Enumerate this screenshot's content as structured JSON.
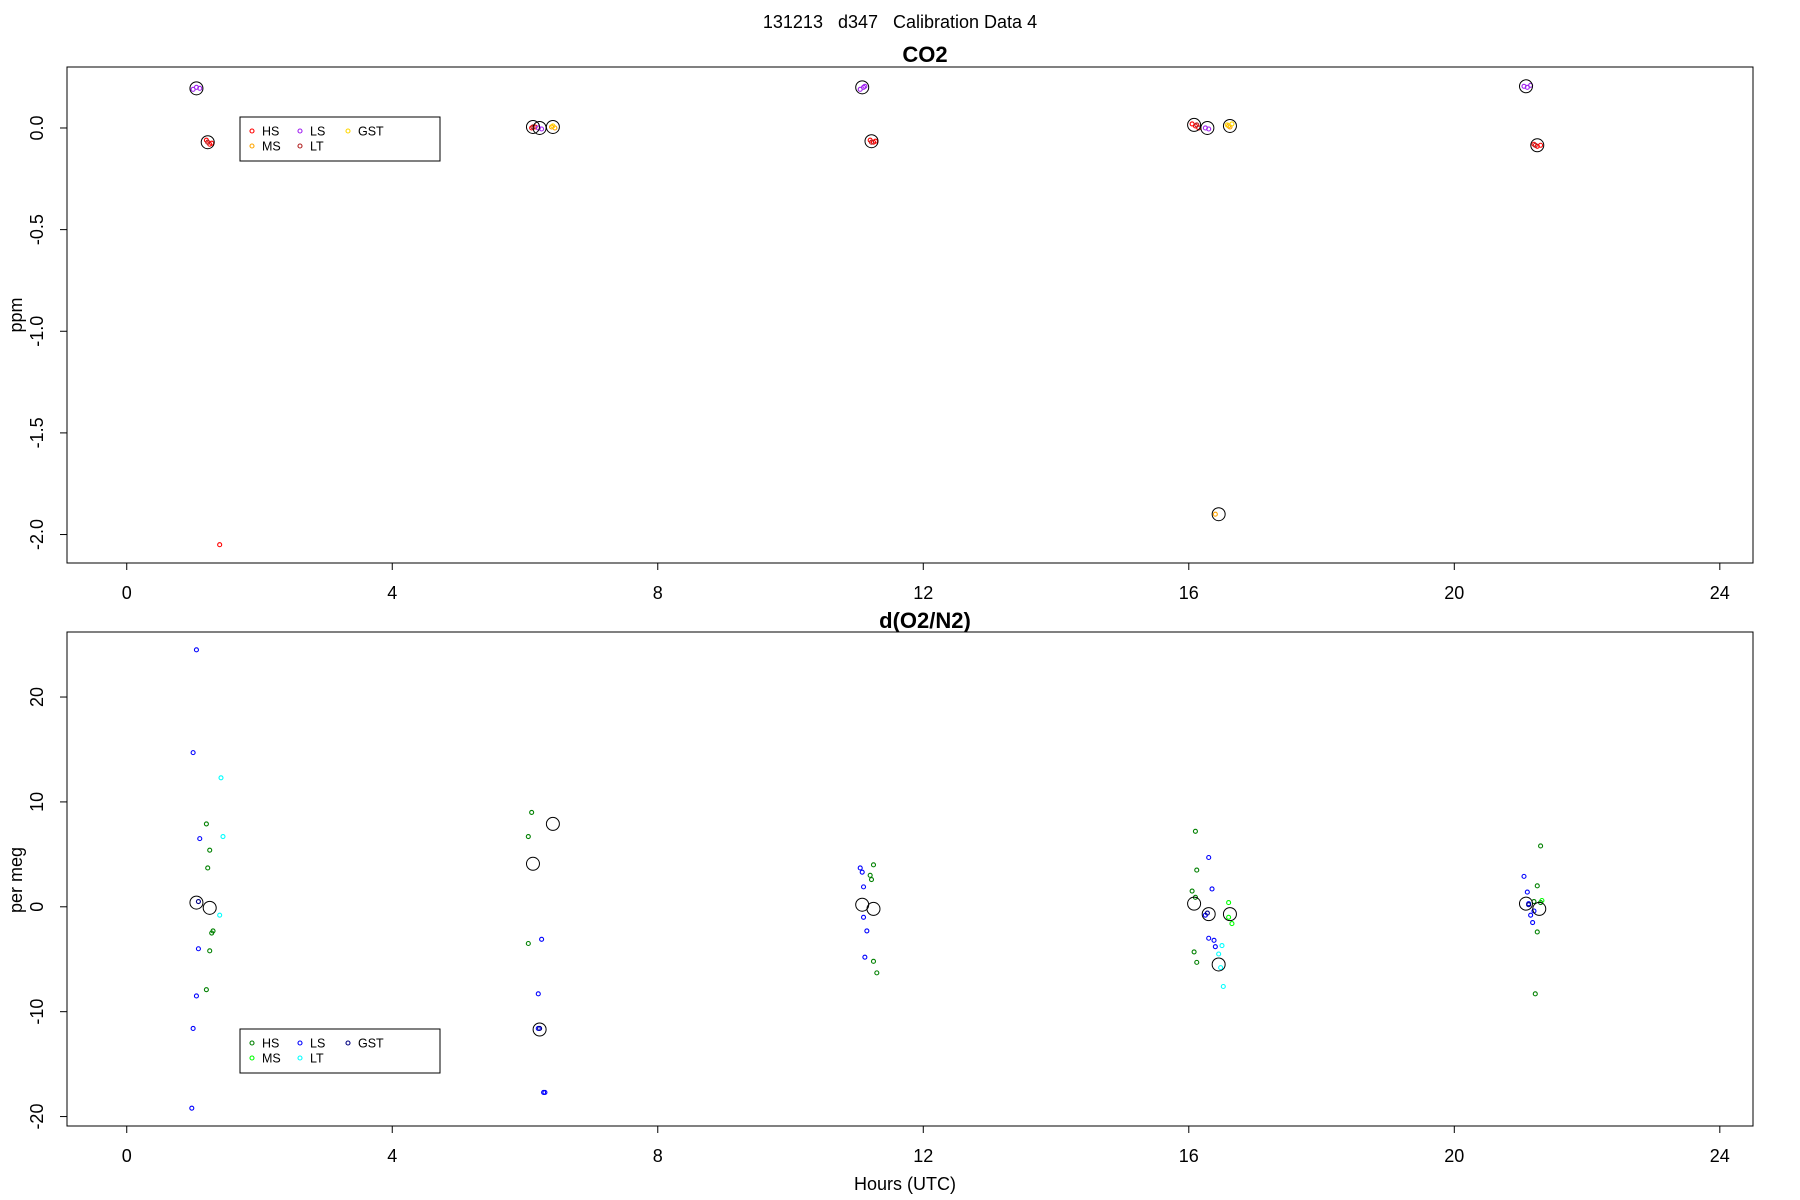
{
  "figure": {
    "title": "131213   d347   Calibration Data 4"
  },
  "chart_data": [
    {
      "type": "scatter",
      "title": "CO2",
      "xlabel": "",
      "ylabel": "ppm",
      "xlim": [
        -0.9,
        24.5
      ],
      "ylim": [
        -2.14,
        0.3
      ],
      "xticks": [
        0,
        4,
        8,
        12,
        16,
        20,
        24
      ],
      "xtick_labels": [
        "0",
        "4",
        "8",
        "12",
        "16",
        "20",
        "24"
      ],
      "yticks": [
        0.0,
        -0.5,
        -1.0,
        -1.5,
        -2.0
      ],
      "ytick_labels": [
        "0.0",
        "-0.5",
        "-1.0",
        "-1.5",
        "-2.0"
      ],
      "grid": false,
      "legend": {
        "placement": "top-left",
        "entries": [
          {
            "label": "HS",
            "color": "#ff0000"
          },
          {
            "label": "MS",
            "color": "#ffa500"
          },
          {
            "label": "LS",
            "color": "#a020f0"
          },
          {
            "label": "LT",
            "color": "#b22222"
          },
          {
            "label": "GST",
            "color": "#ffd700"
          }
        ]
      },
      "series": [
        {
          "name": "HS",
          "color": "#ff0000",
          "points": [
            [
              1.2,
              -0.06
            ],
            [
              1.25,
              -0.08
            ],
            [
              1.28,
              -0.075
            ],
            [
              1.4,
              -2.05
            ],
            [
              6.1,
              0.0
            ],
            [
              6.15,
              0.005
            ],
            [
              11.2,
              -0.06
            ],
            [
              11.25,
              -0.07
            ],
            [
              11.28,
              -0.065
            ],
            [
              16.05,
              0.02
            ],
            [
              16.1,
              0.01
            ],
            [
              16.15,
              0.0
            ],
            [
              21.2,
              -0.08
            ],
            [
              21.25,
              -0.09
            ],
            [
              21.3,
              -0.085
            ]
          ]
        },
        {
          "name": "MS",
          "color": "#ffa500",
          "points": [
            [
              6.4,
              0.005
            ],
            [
              6.45,
              0.0
            ],
            [
              16.4,
              -1.9
            ],
            [
              16.6,
              0.01
            ],
            [
              16.62,
              0.005
            ]
          ]
        },
        {
          "name": "LS",
          "color": "#a020f0",
          "points": [
            [
              1.0,
              0.19
            ],
            [
              1.05,
              0.2
            ],
            [
              1.1,
              0.195
            ],
            [
              6.2,
              0.0
            ],
            [
              6.25,
              -0.005
            ],
            [
              11.05,
              0.19
            ],
            [
              11.1,
              0.2
            ],
            [
              11.12,
              0.205
            ],
            [
              16.25,
              0.0
            ],
            [
              16.3,
              -0.005
            ],
            [
              21.05,
              0.205
            ],
            [
              21.1,
              0.2
            ],
            [
              21.15,
              0.21
            ]
          ]
        },
        {
          "name": "LT",
          "color": "#b22222",
          "points": [
            [
              1.22,
              -0.07
            ],
            [
              6.12,
              0.005
            ],
            [
              11.22,
              -0.07
            ],
            [
              16.12,
              0.015
            ],
            [
              21.22,
              -0.085
            ]
          ]
        },
        {
          "name": "GST",
          "color": "#ffd700",
          "points": [
            [
              6.42,
              0.01
            ],
            [
              16.58,
              0.015
            ],
            [
              16.65,
              0.02
            ]
          ]
        },
        {
          "name": "",
          "color": "#000000",
          "marker": "large-circle",
          "points": [
            [
              1.05,
              0.195
            ],
            [
              1.22,
              -0.07
            ],
            [
              6.12,
              0.005
            ],
            [
              6.22,
              0.0
            ],
            [
              6.42,
              0.005
            ],
            [
              11.08,
              0.2
            ],
            [
              11.22,
              -0.065
            ],
            [
              16.08,
              0.015
            ],
            [
              16.28,
              0.0
            ],
            [
              16.45,
              -1.9
            ],
            [
              16.62,
              0.01
            ],
            [
              21.08,
              0.205
            ],
            [
              21.25,
              -0.085
            ]
          ]
        }
      ]
    },
    {
      "type": "scatter",
      "title": "d(O2/N2)",
      "xlabel": "Hours (UTC)",
      "ylabel": "per meg",
      "xlim": [
        -0.9,
        24.5
      ],
      "ylim": [
        -20.9,
        26.2
      ],
      "xticks": [
        0,
        4,
        8,
        12,
        16,
        20,
        24
      ],
      "xtick_labels": [
        "0",
        "4",
        "8",
        "12",
        "16",
        "20",
        "24"
      ],
      "yticks": [
        20,
        10,
        0,
        -10,
        -20
      ],
      "ytick_labels": [
        "20",
        "10",
        "0",
        "-10",
        "-20"
      ],
      "grid": false,
      "legend": {
        "placement": "bottom-left",
        "entries": [
          {
            "label": "HS",
            "color": "#008000"
          },
          {
            "label": "MS",
            "color": "#00ff00"
          },
          {
            "label": "LS",
            "color": "#0000ff"
          },
          {
            "label": "LT",
            "color": "#00ffff"
          },
          {
            "label": "GST",
            "color": "#000080"
          }
        ]
      },
      "series": [
        {
          "name": "HS",
          "color": "#008000",
          "points": [
            [
              1.2,
              7.9
            ],
            [
              1.25,
              5.4
            ],
            [
              1.22,
              3.7
            ],
            [
              1.3,
              -2.3
            ],
            [
              1.28,
              -2.5
            ],
            [
              1.25,
              -4.2
            ],
            [
              1.2,
              -7.9
            ],
            [
              6.1,
              9.0
            ],
            [
              6.05,
              6.7
            ],
            [
              6.05,
              -3.5
            ],
            [
              11.25,
              4.0
            ],
            [
              11.2,
              3.0
            ],
            [
              11.22,
              2.6
            ],
            [
              11.25,
              -5.2
            ],
            [
              11.3,
              -6.3
            ],
            [
              16.1,
              7.2
            ],
            [
              16.12,
              3.5
            ],
            [
              16.05,
              1.5
            ],
            [
              16.08,
              -4.3
            ],
            [
              16.12,
              -5.3
            ],
            [
              16.1,
              0.9
            ],
            [
              21.3,
              5.8
            ],
            [
              21.25,
              2.0
            ],
            [
              21.2,
              0.5
            ],
            [
              21.25,
              -2.4
            ],
            [
              21.22,
              -8.3
            ],
            [
              21.3,
              0.4
            ]
          ]
        },
        {
          "name": "MS",
          "color": "#00ff00",
          "points": [
            [
              16.6,
              0.4
            ],
            [
              16.65,
              -1.6
            ],
            [
              16.6,
              -1.0
            ],
            [
              21.32,
              0.6
            ]
          ]
        },
        {
          "name": "LS",
          "color": "#0000ff",
          "points": [
            [
              1.05,
              24.5
            ],
            [
              1.0,
              14.7
            ],
            [
              1.1,
              6.5
            ],
            [
              1.08,
              -4.0
            ],
            [
              1.0,
              -11.6
            ],
            [
              1.05,
              -8.5
            ],
            [
              0.98,
              -19.2
            ],
            [
              6.25,
              -3.1
            ],
            [
              6.2,
              -8.3
            ],
            [
              6.3,
              -17.7
            ],
            [
              6.28,
              -17.7
            ],
            [
              6.2,
              -11.6
            ],
            [
              11.05,
              3.7
            ],
            [
              11.08,
              3.3
            ],
            [
              11.1,
              1.9
            ],
            [
              11.15,
              -2.3
            ],
            [
              11.12,
              -4.8
            ],
            [
              11.1,
              -1.0
            ],
            [
              16.3,
              4.7
            ],
            [
              16.35,
              1.7
            ],
            [
              16.3,
              -3.0
            ],
            [
              16.38,
              -3.2
            ],
            [
              16.4,
              -3.8
            ],
            [
              16.25,
              -0.8
            ],
            [
              21.05,
              2.9
            ],
            [
              21.1,
              1.4
            ],
            [
              21.12,
              0.3
            ],
            [
              21.15,
              -0.8
            ],
            [
              21.18,
              -1.5
            ],
            [
              21.2,
              -0.4
            ]
          ]
        },
        {
          "name": "LT",
          "color": "#00ffff",
          "points": [
            [
              1.42,
              12.3
            ],
            [
              1.45,
              6.7
            ],
            [
              1.4,
              -0.8
            ],
            [
              16.5,
              -3.7
            ],
            [
              16.45,
              -4.5
            ],
            [
              16.52,
              -7.6
            ],
            [
              16.48,
              -5.8
            ]
          ]
        },
        {
          "name": "GST",
          "color": "#000080",
          "points": [
            [
              1.08,
              0.5
            ],
            [
              6.22,
              -11.6
            ],
            [
              16.28,
              -0.6
            ],
            [
              21.12,
              0.2
            ]
          ]
        },
        {
          "name": "",
          "color": "#000000",
          "marker": "large-circle",
          "points": [
            [
              1.05,
              0.4
            ],
            [
              1.25,
              -0.1
            ],
            [
              6.12,
              4.1
            ],
            [
              6.42,
              7.9
            ],
            [
              6.22,
              -11.7
            ],
            [
              11.08,
              0.2
            ],
            [
              11.25,
              -0.2
            ],
            [
              16.08,
              0.3
            ],
            [
              16.3,
              -0.7
            ],
            [
              16.45,
              -5.5
            ],
            [
              16.62,
              -0.7
            ],
            [
              21.08,
              0.3
            ],
            [
              21.28,
              -0.2
            ]
          ]
        }
      ]
    }
  ]
}
